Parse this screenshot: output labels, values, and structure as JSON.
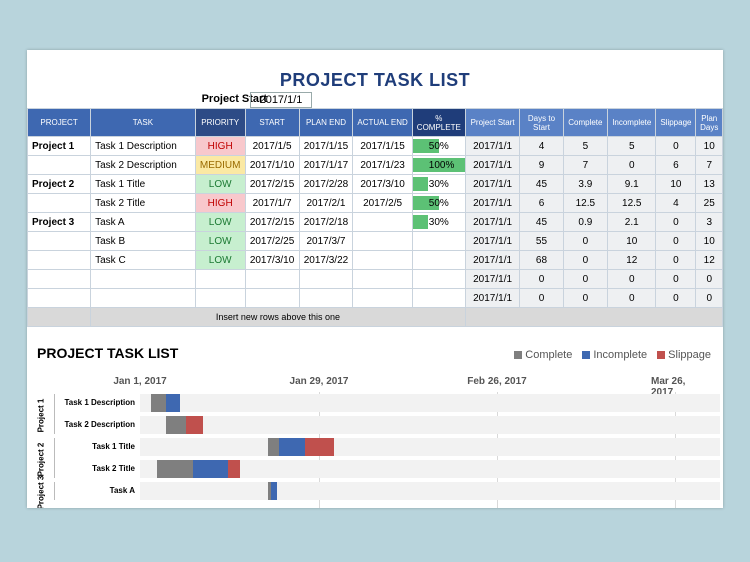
{
  "title": "PROJECT TASK LIST",
  "project_start": {
    "label": "Project Start",
    "value": "2017/1/1"
  },
  "headers": {
    "project": "PROJECT",
    "task": "TASK",
    "priority": "PRIORITY",
    "start": "START",
    "plan_end": "PLAN END",
    "actual_end": "ACTUAL END",
    "pct_complete": "% COMPLETE",
    "project_start": "Project Start",
    "days_to_start": "Days to Start",
    "complete": "Complete",
    "incomplete": "Incomplete",
    "slippage": "Slippage",
    "plan_days": "Plan Days"
  },
  "rows": [
    {
      "project": "Project 1",
      "task": "Task 1 Description",
      "priority": "HIGH",
      "start": "2017/1/5",
      "plan_end": "2017/1/15",
      "actual_end": "2017/1/15",
      "pct": "50%",
      "pct_value": 0.5,
      "ps": "2017/1/1",
      "days": "4",
      "complete": "5",
      "incomplete": "5",
      "slippage": "0",
      "plan_days": "10"
    },
    {
      "project": "",
      "task": "Task 2 Description",
      "priority": "MEDIUM",
      "start": "2017/1/10",
      "plan_end": "2017/1/17",
      "actual_end": "2017/1/23",
      "pct": "100%",
      "pct_value": 1.0,
      "ps": "2017/1/1",
      "days": "9",
      "complete": "7",
      "incomplete": "0",
      "slippage": "6",
      "plan_days": "7"
    },
    {
      "project": "Project 2",
      "task": "Task 1 Title",
      "priority": "LOW",
      "start": "2017/2/15",
      "plan_end": "2017/2/28",
      "actual_end": "2017/3/10",
      "pct": "30%",
      "pct_value": 0.3,
      "ps": "2017/1/1",
      "days": "45",
      "complete": "3.9",
      "incomplete": "9.1",
      "slippage": "10",
      "plan_days": "13"
    },
    {
      "project": "",
      "task": "Task 2 Title",
      "priority": "HIGH",
      "start": "2017/1/7",
      "plan_end": "2017/2/1",
      "actual_end": "2017/2/5",
      "pct": "50%",
      "pct_value": 0.5,
      "ps": "2017/1/1",
      "days": "6",
      "complete": "12.5",
      "incomplete": "12.5",
      "slippage": "4",
      "plan_days": "25"
    },
    {
      "project": "Project 3",
      "task": "Task A",
      "priority": "LOW",
      "start": "2017/2/15",
      "plan_end": "2017/2/18",
      "actual_end": "",
      "pct": "30%",
      "pct_value": 0.3,
      "ps": "2017/1/1",
      "days": "45",
      "complete": "0.9",
      "incomplete": "2.1",
      "slippage": "0",
      "plan_days": "3"
    },
    {
      "project": "",
      "task": "Task B",
      "priority": "LOW",
      "start": "2017/2/25",
      "plan_end": "2017/3/7",
      "actual_end": "",
      "pct": "",
      "pct_value": 0,
      "ps": "2017/1/1",
      "days": "55",
      "complete": "0",
      "incomplete": "10",
      "slippage": "0",
      "plan_days": "10"
    },
    {
      "project": "",
      "task": "Task C",
      "priority": "LOW",
      "start": "2017/3/10",
      "plan_end": "2017/3/22",
      "actual_end": "",
      "pct": "",
      "pct_value": 0,
      "ps": "2017/1/1",
      "days": "68",
      "complete": "0",
      "incomplete": "12",
      "slippage": "0",
      "plan_days": "12"
    },
    {
      "project": "",
      "task": "",
      "priority": "",
      "start": "",
      "plan_end": "",
      "actual_end": "",
      "pct": "",
      "pct_value": 0,
      "ps": "2017/1/1",
      "days": "0",
      "complete": "0",
      "incomplete": "0",
      "slippage": "0",
      "plan_days": "0"
    },
    {
      "project": "",
      "task": "",
      "priority": "",
      "start": "",
      "plan_end": "",
      "actual_end": "",
      "pct": "",
      "pct_value": 0,
      "ps": "2017/1/1",
      "days": "0",
      "complete": "0",
      "incomplete": "0",
      "slippage": "0",
      "plan_days": "0"
    }
  ],
  "insert_note": "Insert new rows above this one",
  "colors": {
    "complete": "#7f7f7f",
    "incomplete": "#3e68b1",
    "slippage": "#c0504d",
    "track": "#f2f2f2"
  },
  "chart_data": {
    "type": "bar",
    "title": "PROJECT TASK LIST",
    "orientation": "horizontal-stacked",
    "x_tick_labels": [
      "Jan 1, 2017",
      "Jan 29, 2017",
      "Feb 26, 2017",
      "Mar 26, 2017"
    ],
    "groups": [
      {
        "name": "Project 1",
        "tasks": [
          "Task 1 Description",
          "Task 2 Description"
        ]
      },
      {
        "name": "Project 2",
        "tasks": [
          "Task 1 Title",
          "Task 2 Title"
        ]
      },
      {
        "name": "Project 3",
        "tasks": [
          "Task A"
        ]
      }
    ],
    "categories": [
      "Task 1 Description",
      "Task 2 Description",
      "Task 1 Title",
      "Task 2 Title",
      "Task A"
    ],
    "offset_days": [
      4,
      9,
      45,
      6,
      45
    ],
    "series": [
      {
        "name": "Complete",
        "values": [
          5,
          7,
          3.9,
          12.5,
          0.9
        ]
      },
      {
        "name": "Incomplete",
        "values": [
          5,
          0,
          9.1,
          12.5,
          2.1
        ]
      },
      {
        "name": "Slippage",
        "values": [
          0,
          6,
          10,
          4,
          0
        ]
      }
    ],
    "legend": "top-right"
  }
}
